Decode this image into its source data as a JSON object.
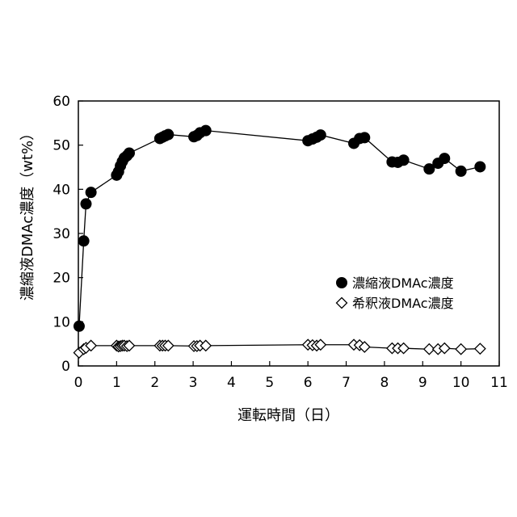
{
  "chart_data": {
    "type": "scatter",
    "xlabel": "運転時間（日）",
    "ylabel": "濃縮液DMAc濃度（wt%）",
    "xlim": [
      0,
      11
    ],
    "ylim": [
      0,
      60
    ],
    "x_ticks": [
      "0",
      "1",
      "2",
      "3",
      "4",
      "5",
      "6",
      "7",
      "8",
      "9",
      "10",
      "11"
    ],
    "y_ticks": [
      "0",
      "10",
      "20",
      "30",
      "40",
      "50",
      "60"
    ],
    "grid": false,
    "legend_position": "right-middle",
    "series": [
      {
        "name": "濃縮液DMAc濃度",
        "marker": "filled-circle",
        "color": "#000000",
        "points": [
          [
            0.02,
            9
          ],
          [
            0.14,
            28.3
          ],
          [
            0.2,
            36.7
          ],
          [
            0.33,
            39.3
          ],
          [
            1.0,
            43.2
          ],
          [
            1.05,
            44
          ],
          [
            1.1,
            45.3
          ],
          [
            1.15,
            46.3
          ],
          [
            1.2,
            47.1
          ],
          [
            1.27,
            47.6
          ],
          [
            1.33,
            48.2
          ],
          [
            2.13,
            51.5
          ],
          [
            2.2,
            51.8
          ],
          [
            2.27,
            52.1
          ],
          [
            2.35,
            52.4
          ],
          [
            3.02,
            51.9
          ],
          [
            3.1,
            52.2
          ],
          [
            3.18,
            52.8
          ],
          [
            3.33,
            53.3
          ],
          [
            6.0,
            51.0
          ],
          [
            6.12,
            51.4
          ],
          [
            6.23,
            51.8
          ],
          [
            6.33,
            52.3
          ],
          [
            7.2,
            50.4
          ],
          [
            7.35,
            51.5
          ],
          [
            7.48,
            51.7
          ],
          [
            8.2,
            46.2
          ],
          [
            8.35,
            46.1
          ],
          [
            8.5,
            46.6
          ],
          [
            9.17,
            44.6
          ],
          [
            9.4,
            45.9
          ],
          [
            9.57,
            47.0
          ],
          [
            10.0,
            44.1
          ],
          [
            10.5,
            45.1
          ]
        ]
      },
      {
        "name": "希釈液DMAc濃度",
        "marker": "open-diamond",
        "color": "#000000",
        "points": [
          [
            0.02,
            3.0
          ],
          [
            0.14,
            3.8
          ],
          [
            0.2,
            4.1
          ],
          [
            0.33,
            4.6
          ],
          [
            1.0,
            4.6
          ],
          [
            1.05,
            4.4
          ],
          [
            1.1,
            4.5
          ],
          [
            1.15,
            4.6
          ],
          [
            1.2,
            4.6
          ],
          [
            1.27,
            4.5
          ],
          [
            1.33,
            4.6
          ],
          [
            2.13,
            4.6
          ],
          [
            2.2,
            4.6
          ],
          [
            2.27,
            4.6
          ],
          [
            2.35,
            4.6
          ],
          [
            3.02,
            4.5
          ],
          [
            3.1,
            4.5
          ],
          [
            3.18,
            4.6
          ],
          [
            3.33,
            4.6
          ],
          [
            6.0,
            4.8
          ],
          [
            6.12,
            4.7
          ],
          [
            6.23,
            4.6
          ],
          [
            6.33,
            4.8
          ],
          [
            7.2,
            4.8
          ],
          [
            7.35,
            4.7
          ],
          [
            7.48,
            4.3
          ],
          [
            8.2,
            4.0
          ],
          [
            8.35,
            4.0
          ],
          [
            8.5,
            4.0
          ],
          [
            9.17,
            3.8
          ],
          [
            9.4,
            3.8
          ],
          [
            9.57,
            4.0
          ],
          [
            10.0,
            3.8
          ],
          [
            10.5,
            3.9
          ]
        ]
      }
    ]
  }
}
